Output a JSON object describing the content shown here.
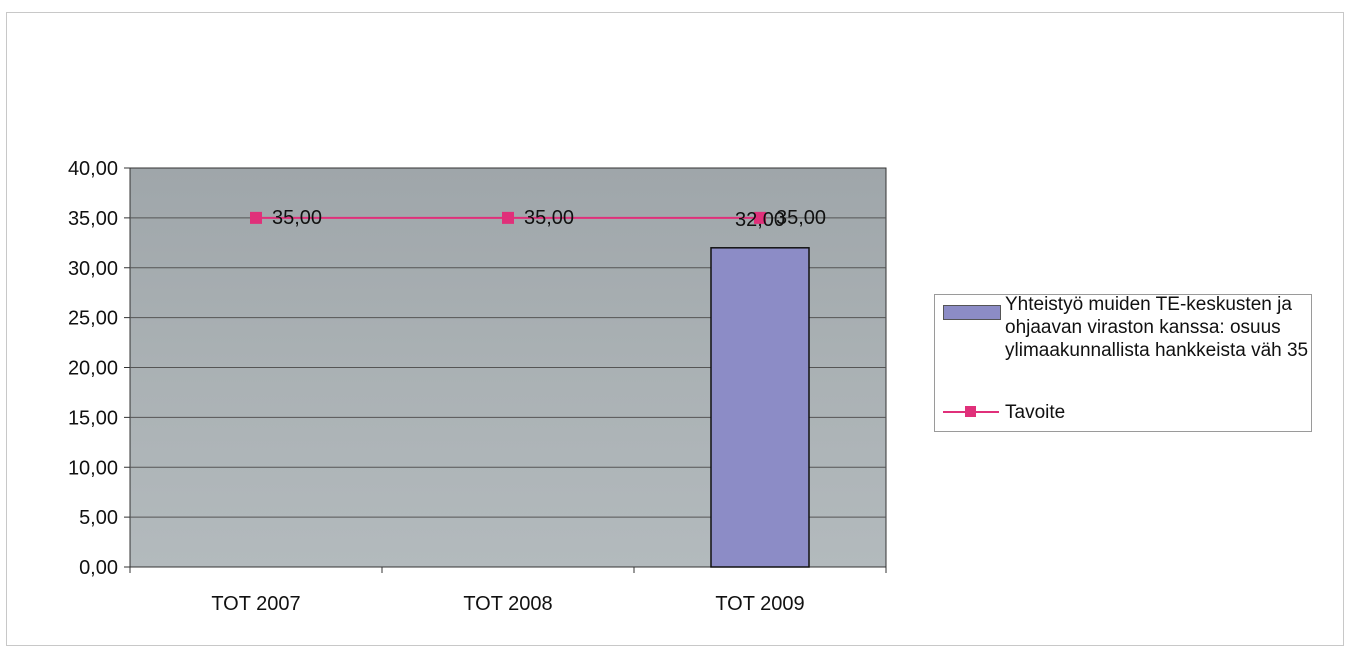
{
  "chart_data": {
    "type": "bar",
    "categories": [
      "TOT 2007",
      "TOT 2008",
      "TOT 2009"
    ],
    "series": [
      {
        "name": "Yhteistyö muiden TE-keskusten ja ohjaavan viraston kanssa: osuus ylimaakunnallista hankkeista väh 35",
        "kind": "bar",
        "values": [
          null,
          null,
          32.0
        ],
        "labels": [
          "",
          "",
          "32,00"
        ],
        "color": "#8c8cc6"
      },
      {
        "name": "Tavoite",
        "kind": "line",
        "values": [
          35.0,
          35.0,
          35.0
        ],
        "labels": [
          "35,00",
          "35,00",
          "35,00"
        ],
        "color": "#e0307a"
      }
    ],
    "ylim": [
      0,
      40
    ],
    "yticks": [
      "0,00",
      "5,00",
      "10,00",
      "15,00",
      "20,00",
      "25,00",
      "30,00",
      "35,00",
      "40,00"
    ],
    "grid": true,
    "legend_position": "right",
    "plot_background": "#a9b0b3"
  }
}
